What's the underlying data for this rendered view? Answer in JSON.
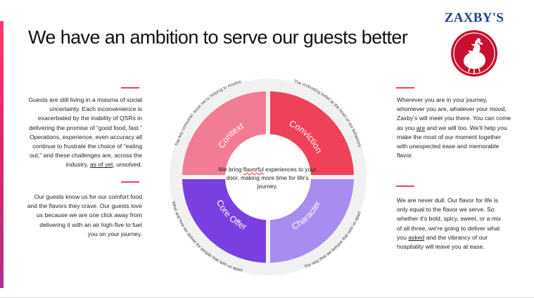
{
  "slide": {
    "title": "We have an ambition to serve our guests better"
  },
  "logo": {
    "text": "ZAXBY'S",
    "emblem": "chicken-emblem-icon",
    "colors": {
      "text": "#1e3f8f",
      "badge": "#c8102e"
    }
  },
  "diagram": {
    "center": {
      "line1_a": "We bring ",
      "line1_b": "flavorful",
      "line1_c": " experiences to your",
      "line2": "door, making more time for life's journey."
    },
    "quadrants": [
      {
        "label": "Context",
        "arc_text": "The key consumer issue we're helping to resolve",
        "color": "#f37c95"
      },
      {
        "label": "Conviction",
        "arc_text": "The motivating belief at the heart of our behaviors",
        "color": "#f0415a"
      },
      {
        "label": "Core Offer",
        "arc_text": "What and how we deliver for people that sets us apart",
        "color": "#7a3fe0"
      },
      {
        "label": "Character",
        "arc_text": "The way that we behave that sets us apart",
        "color": "#a98cf0"
      }
    ]
  },
  "paragraphs": {
    "top_left": [
      "Guests are still living in a miasma of social",
      "uncertainty. Each inconvenience is",
      "exacerbated by the inability of QSRs in",
      "delivering the promise of “good food, fast.”",
      "Operations, experience, even accuracy all",
      "continue to frustrate the choice of “eating",
      "out,” and these challenges are, across the",
      "industry, as of yet, unsolved."
    ],
    "bottom_left": [
      "Our guests know us for our comfort food",
      "and the flavors they crave. Our guests love",
      "us because we are one click away from",
      "delivering it with an air high-five to fuel",
      "you on your journey."
    ],
    "top_right": [
      "Wherever you are in your journey,",
      "whomever you are, whatever your mood,",
      "Zaxby's will meet you there. You can come",
      "as you are and we will too. We'll help you",
      "make the most of our moment together",
      "with unexpected ease and memorable",
      "flavor."
    ],
    "bottom_right": [
      "We are never dull. Our flavor for life is",
      "only equal to the flavor we serve. So",
      "whether it's bold, spicy, sweet, or a mix",
      "of all three, we're going to deliver what",
      "you asked and the vibrancy of our",
      "hospitality will leave you at ease."
    ]
  },
  "colors": {
    "accent": "#e8435e",
    "ring": "#eeeeee"
  }
}
